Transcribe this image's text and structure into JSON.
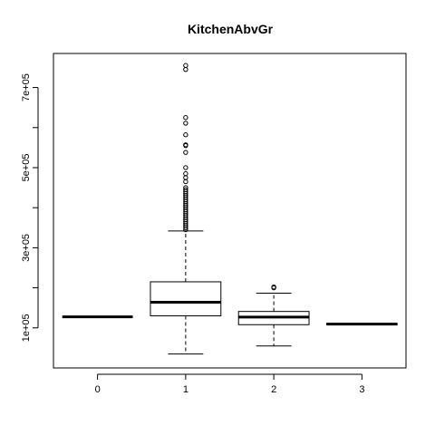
{
  "chart_data": {
    "type": "box",
    "title": "KitchenAbvGr",
    "xlabel": "",
    "ylabel": "",
    "categories": [
      "0",
      "1",
      "2",
      "3"
    ],
    "ylim": [
      0,
      785000
    ],
    "y_ticks": [
      100000,
      200000,
      300000,
      400000,
      500000,
      600000,
      700000
    ],
    "y_tick_labels": {
      "100000": "1e+05",
      "300000": "3e+05",
      "500000": "5e+05",
      "700000": "7e+05"
    },
    "grid": false,
    "legend": "none",
    "boxes": [
      {
        "category": "0",
        "min": 127500,
        "q1": 127500,
        "median": 127500,
        "q3": 127500,
        "max": 127500,
        "outliers": []
      },
      {
        "category": "1",
        "min": 34900,
        "q1": 130000,
        "median": 164000,
        "q3": 215000,
        "max": 342000,
        "outliers": [
          345000,
          350000,
          355000,
          360000,
          365000,
          370000,
          375000,
          380000,
          385000,
          390000,
          395000,
          400000,
          405000,
          410000,
          415000,
          420000,
          425000,
          430000,
          435000,
          440000,
          445000,
          450000,
          465000,
          475000,
          485000,
          500000,
          538000,
          555000,
          557000,
          582000,
          611000,
          625000,
          745000,
          755000
        ]
      },
      {
        "category": "2",
        "min": 55000,
        "q1": 108000,
        "median": 127000,
        "q3": 141000,
        "max": 186700,
        "outliers": [
          200000,
          202000
        ]
      },
      {
        "category": "3",
        "min": 108000,
        "q1": 108000,
        "median": 109500,
        "q3": 111000,
        "max": 111000,
        "outliers": []
      }
    ]
  }
}
